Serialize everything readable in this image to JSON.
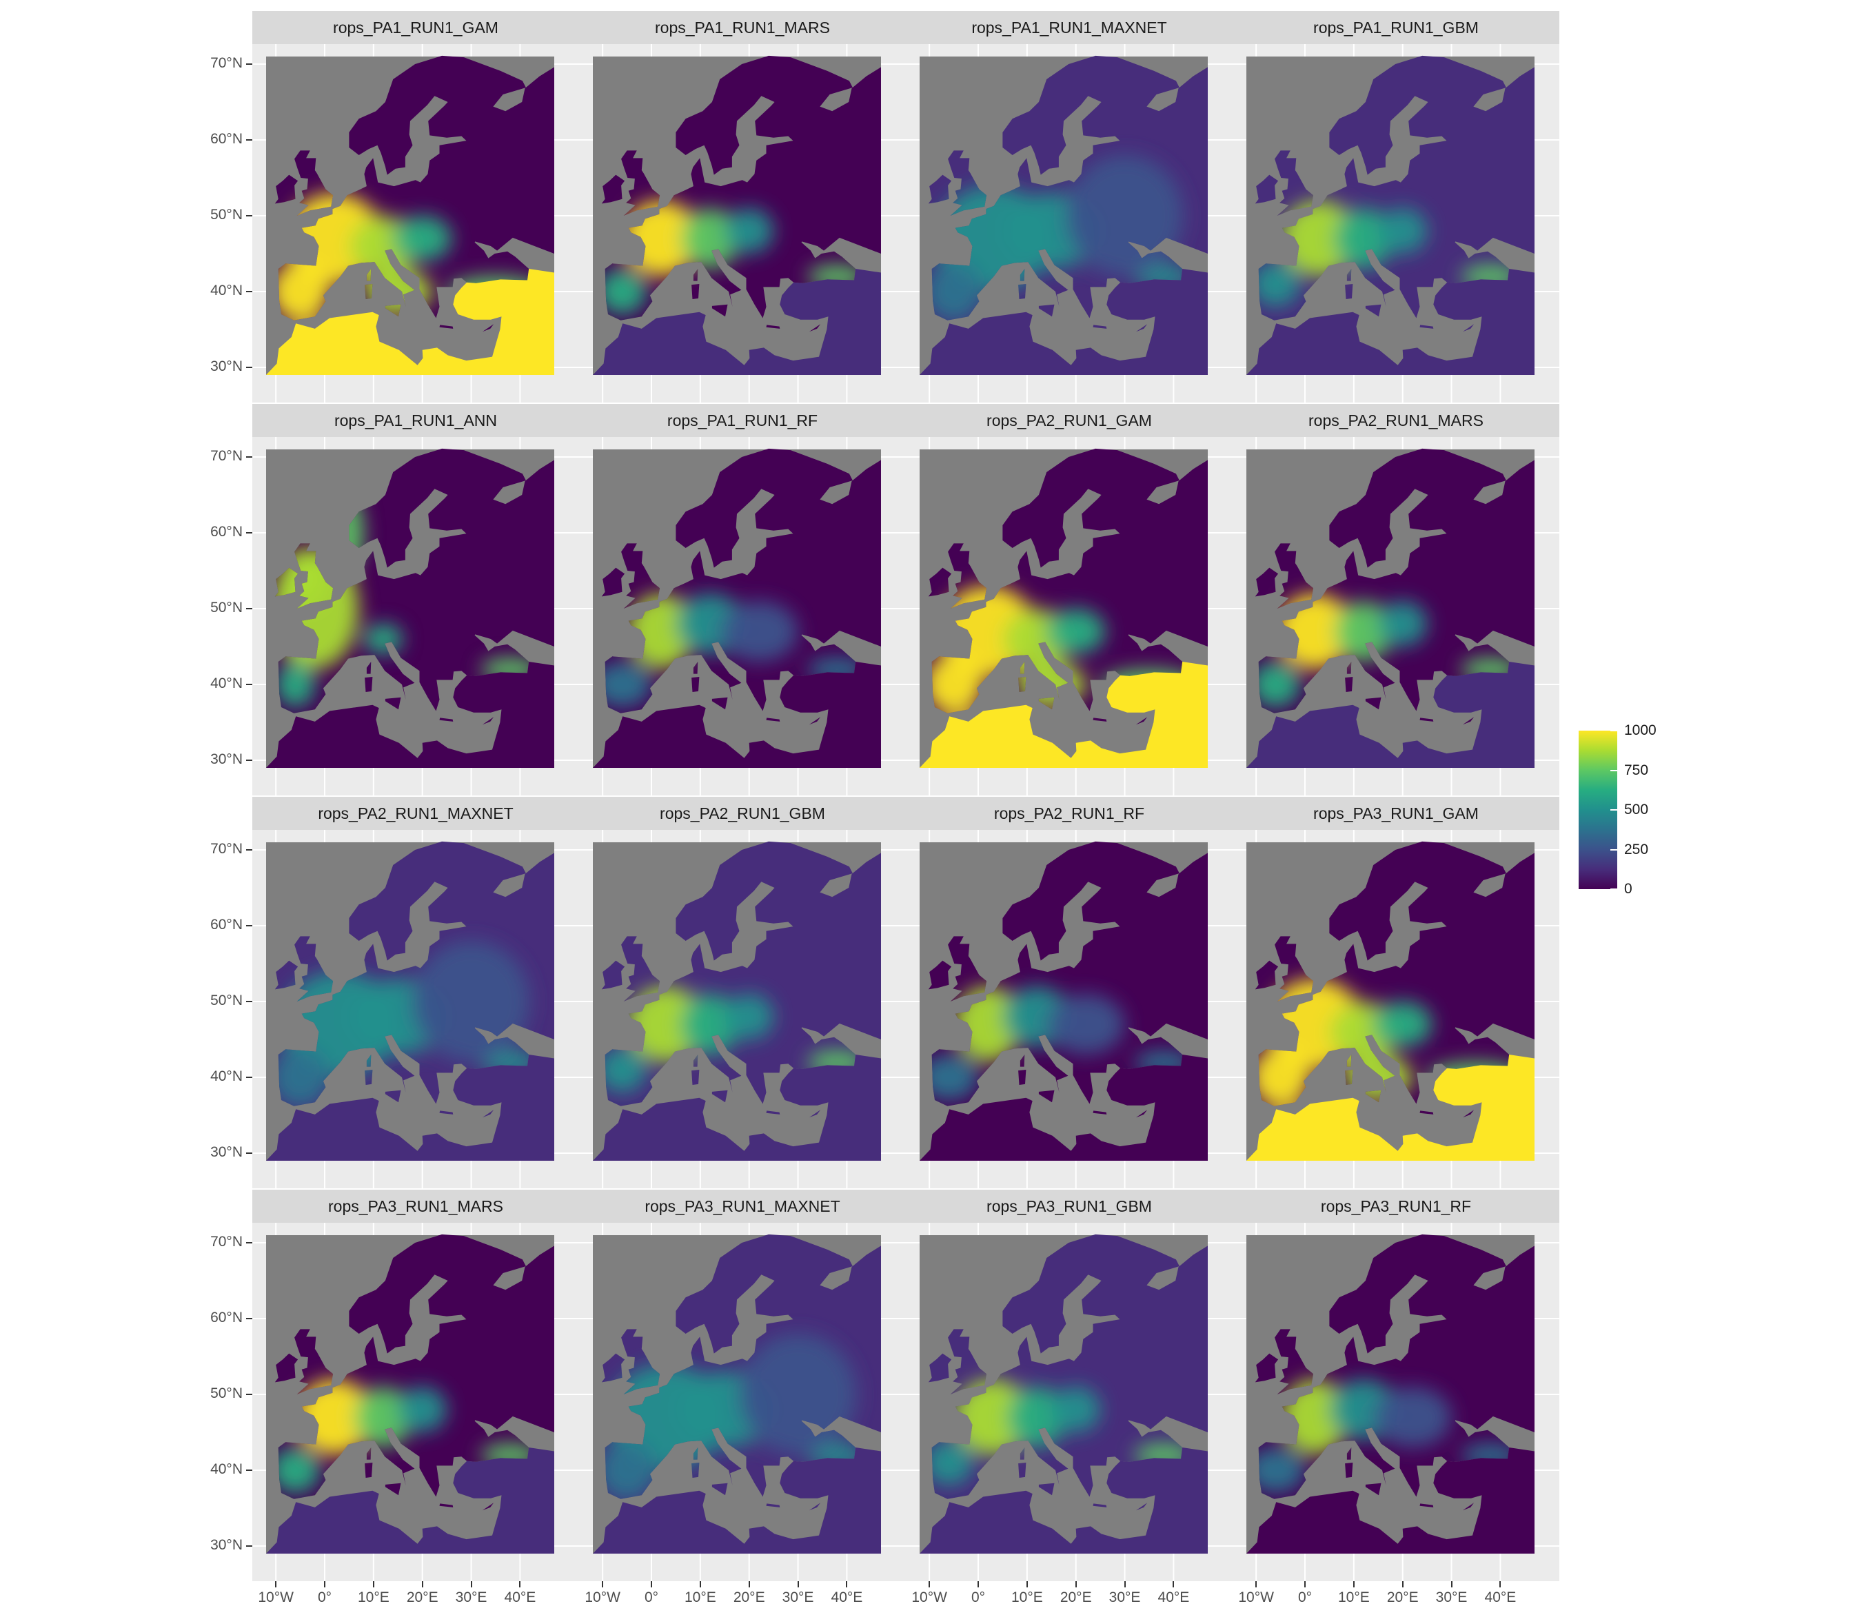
{
  "figure": {
    "panels": [
      {
        "title": "rops_PA1_RUN1_GAM",
        "pattern": "gam"
      },
      {
        "title": "rops_PA1_RUN1_MARS",
        "pattern": "mars"
      },
      {
        "title": "rops_PA1_RUN1_MAXNET",
        "pattern": "maxnet"
      },
      {
        "title": "rops_PA1_RUN1_GBM",
        "pattern": "gbm"
      },
      {
        "title": "rops_PA1_RUN1_ANN",
        "pattern": "ann"
      },
      {
        "title": "rops_PA1_RUN1_RF",
        "pattern": "rf"
      },
      {
        "title": "rops_PA2_RUN1_GAM",
        "pattern": "gam"
      },
      {
        "title": "rops_PA2_RUN1_MARS",
        "pattern": "mars"
      },
      {
        "title": "rops_PA2_RUN1_MAXNET",
        "pattern": "maxnet"
      },
      {
        "title": "rops_PA2_RUN1_GBM",
        "pattern": "gbm"
      },
      {
        "title": "rops_PA2_RUN1_RF",
        "pattern": "rf"
      },
      {
        "title": "rops_PA3_RUN1_GAM",
        "pattern": "gam"
      },
      {
        "title": "rops_PA3_RUN1_MARS",
        "pattern": "mars"
      },
      {
        "title": "rops_PA3_RUN1_MAXNET",
        "pattern": "maxnet"
      },
      {
        "title": "rops_PA3_RUN1_GBM",
        "pattern": "gbm"
      },
      {
        "title": "rops_PA3_RUN1_RF",
        "pattern": "rf"
      }
    ],
    "y_axis_labels": [
      "70°N",
      "60°N",
      "50°N",
      "40°N",
      "30°N"
    ],
    "y_axis_values": [
      70,
      60,
      50,
      40,
      30
    ],
    "x_axis_labels": [
      "10°W",
      "0°",
      "10°E",
      "20°E",
      "30°E",
      "40°E"
    ],
    "x_axis_values": [
      -10,
      0,
      10,
      20,
      30,
      40
    ],
    "lat_range": [
      29,
      71
    ],
    "lon_range": [
      -12,
      47
    ]
  },
  "legend": {
    "labels": [
      "1000",
      "750",
      "500",
      "250",
      "0"
    ],
    "values": [
      1000,
      750,
      500,
      250,
      0
    ],
    "range": [
      0,
      1000
    ],
    "colormap": "viridis"
  },
  "colors": {
    "na_gray": "#7f7f7f",
    "panel_bg": "#ebebeb",
    "strip_bg": "#d9d9d9",
    "viridis_low": "#440154",
    "viridis_mid": "#21908c",
    "viridis_high": "#fde725"
  }
}
